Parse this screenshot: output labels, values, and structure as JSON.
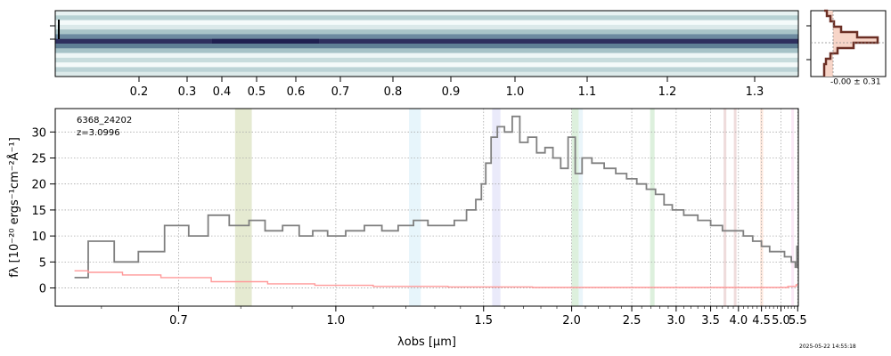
{
  "chart_data": [
    {
      "type": "heatmap",
      "name": "2d-spectrum",
      "top_ticks": [
        "0.2",
        "0.3",
        "0.4",
        "0.5",
        "0.6",
        "0.7",
        "0.8",
        "0.9",
        "1.0",
        "1.1",
        "1.2",
        "1.3"
      ],
      "top_tick_values": [
        0.2,
        0.3,
        0.4,
        0.5,
        0.6,
        0.7,
        0.8,
        0.9,
        1.0,
        1.1,
        1.2,
        1.3
      ],
      "colormap": [
        "#ffffff",
        "#c9dede",
        "#9fbfc4",
        "#5f7f95",
        "#1c1c4c"
      ]
    },
    {
      "type": "line",
      "name": "profile-inset",
      "annotation": "-0.00 ± 0.31",
      "fill_color": "#f7d5c8",
      "line_color": "#6b2f25"
    },
    {
      "type": "line",
      "name": "1d-spectrum",
      "object_id": "6368_24202",
      "redshift_label": "z=3.0996",
      "xlabel": "λobs [μm]",
      "ylabel": "fλ [10⁻²⁰ ergs⁻¹cm⁻²Å⁻¹]",
      "x_tick_labels": [
        "0.7",
        "1.0",
        "1.5",
        "2.0",
        "2.5",
        "3.0",
        "3.5",
        "4.0",
        "4.5",
        "5.0",
        "5.5"
      ],
      "x_tick_values": [
        0.7,
        1.0,
        1.5,
        2.0,
        2.5,
        3.0,
        3.5,
        4.0,
        4.5,
        5.0,
        5.5
      ],
      "y_tick_labels": [
        "0",
        "5",
        "10",
        "15",
        "20",
        "25",
        "30"
      ],
      "y_tick_values": [
        0,
        5,
        10,
        15,
        20,
        25,
        30
      ],
      "ylim": [
        -3.5,
        34.5
      ],
      "xlim": [
        0.55,
        5.52
      ],
      "grid": true,
      "series": [
        {
          "color": "#808080",
          "x": [
            0.57,
            0.6,
            0.63,
            0.66,
            0.7,
            0.73,
            0.76,
            0.8,
            0.83,
            0.86,
            0.9,
            0.93,
            0.96,
            1.0,
            1.05,
            1.1,
            1.15,
            1.2,
            1.25,
            1.3,
            1.35,
            1.4,
            1.45,
            1.48,
            1.5,
            1.52,
            1.55,
            1.58,
            1.62,
            1.66,
            1.7,
            1.75,
            1.8,
            1.85,
            1.9,
            1.95,
            2.0,
            2.05,
            2.1,
            2.2,
            2.3,
            2.4,
            2.5,
            2.6,
            2.7,
            2.8,
            2.9,
            3.0,
            3.2,
            3.4,
            3.6,
            3.8,
            4.0,
            4.2,
            4.4,
            4.6,
            4.8,
            5.0,
            5.2,
            5.4,
            5.45,
            5.5
          ],
          "y": [
            2,
            9,
            5,
            7,
            12,
            10,
            14,
            12,
            13,
            11,
            12,
            10,
            11,
            10,
            11,
            12,
            11,
            12,
            13,
            12,
            12,
            13,
            15,
            17,
            20,
            24,
            29,
            31,
            30,
            33,
            28,
            29,
            26,
            27,
            25,
            23,
            29,
            22,
            25,
            24,
            23,
            22,
            21,
            20,
            19,
            18,
            16,
            15,
            14,
            13,
            12,
            11,
            11,
            10,
            9,
            8,
            7,
            7,
            6,
            5,
            4,
            8
          ]
        },
        {
          "color": "#ff9999",
          "x": [
            0.57,
            0.6,
            0.65,
            0.7,
            0.8,
            0.9,
            1.0,
            1.2,
            1.5,
            2.0,
            2.5,
            3.0,
            3.5,
            4.0,
            4.5,
            5.0,
            5.4,
            5.5
          ],
          "y": [
            3.3,
            3.0,
            2.5,
            2.0,
            1.2,
            0.8,
            0.5,
            0.3,
            0.2,
            0.1,
            0.1,
            0.1,
            0.1,
            0.1,
            0.1,
            0.1,
            0.3,
            0.6
          ]
        }
      ],
      "bands": [
        {
          "x": 0.79,
          "w": 0.03,
          "color": "#b4c47c"
        },
        {
          "x": 1.21,
          "w": 0.04,
          "color": "#b9e2f4"
        },
        {
          "x": 1.54,
          "w": 0.04,
          "color": "#c3c3f0"
        },
        {
          "x": 2.0,
          "w": 0.05,
          "color": "#9fd49f"
        },
        {
          "x": 2.05,
          "w": 0.03,
          "color": "#c2e3f0"
        },
        {
          "x": 2.69,
          "w": 0.05,
          "color": "#9fd49f"
        },
        {
          "x": 3.72,
          "w": 0.05,
          "color": "#d29c9c"
        },
        {
          "x": 3.91,
          "w": 0.05,
          "color": "#d29c9c"
        },
        {
          "x": 4.47,
          "w": 0.07,
          "color": "#ffbfa0"
        },
        {
          "x": 5.3,
          "w": 0.05,
          "color": "#f5c3ec"
        }
      ]
    }
  ],
  "timestamp": "2025-05-22 14:55:18"
}
